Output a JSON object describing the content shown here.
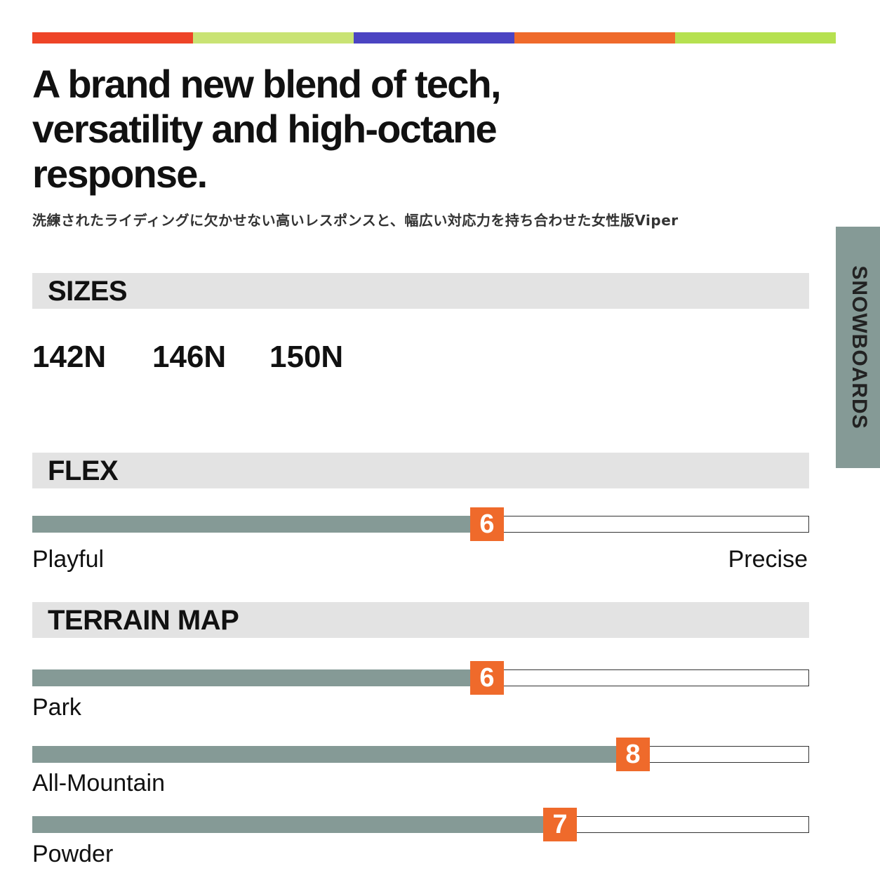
{
  "header": {
    "title": "A brand new blend of tech, versatility and high-octane response.",
    "subtitle": "洗練されたライディングに欠かせない高いレスポンスと、幅広い対応力を持ち合わせた女性版Viper"
  },
  "side_tab": "SNOWBOARDS",
  "sizes": {
    "heading": "SIZES",
    "items": [
      "142N",
      "146N",
      "150N"
    ]
  },
  "flex": {
    "heading": "FLEX",
    "value": 6,
    "low_label": "Playful",
    "high_label": "Precise"
  },
  "terrain_map": {
    "heading": "TERRAIN MAP",
    "items": [
      {
        "label": "Park",
        "value": 6
      },
      {
        "label": "All-Mountain",
        "value": 8
      },
      {
        "label": "Powder",
        "value": 7
      }
    ]
  }
}
